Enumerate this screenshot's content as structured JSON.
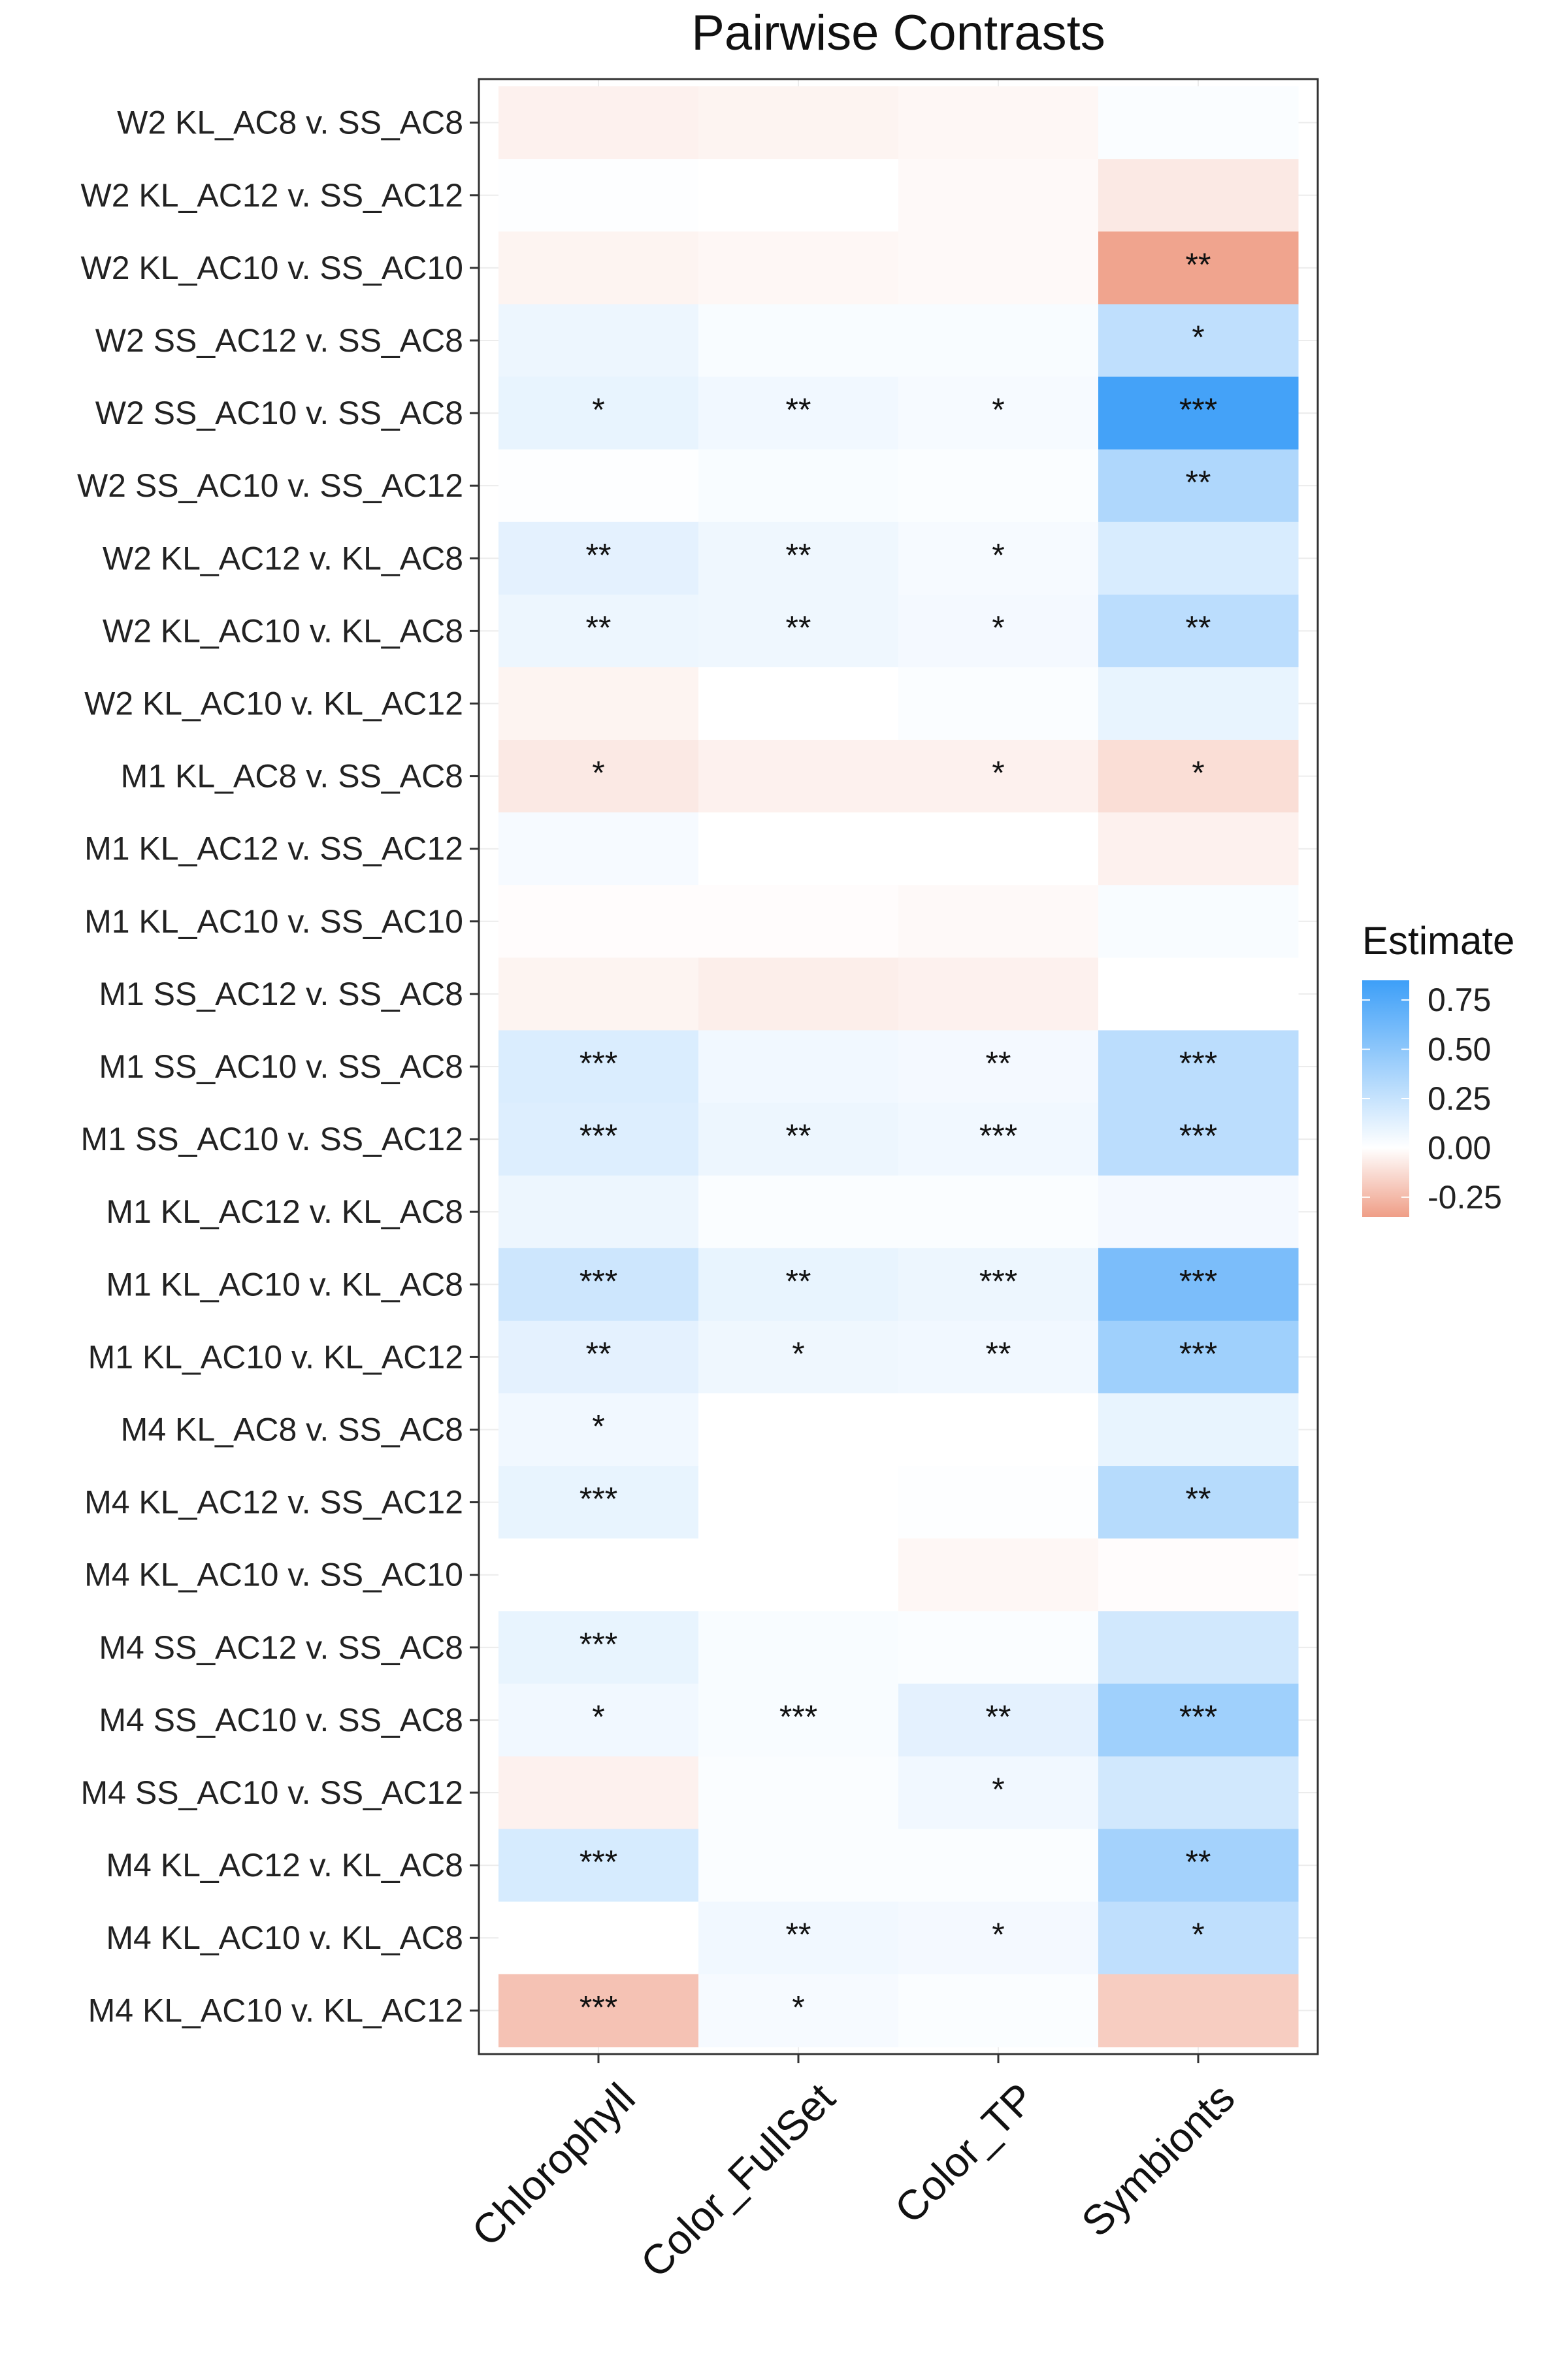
{
  "chart_data": {
    "type": "heatmap",
    "title": "Pairwise Contrasts",
    "xlabel": "",
    "ylabel": "",
    "columns": [
      "Chlorophyll",
      "Color_FullSet",
      "Color_TP",
      "Symbionts"
    ],
    "rows": [
      "W2 KL_AC8 v. SS_AC8",
      "W2 KL_AC12 v. SS_AC12",
      "W2 KL_AC10 v. SS_AC10",
      "W2 SS_AC12 v. SS_AC8",
      "W2 SS_AC10 v. SS_AC8",
      "W2 SS_AC10 v. SS_AC12",
      "W2 KL_AC12 v. KL_AC8",
      "W2 KL_AC10 v. KL_AC8",
      "W2 KL_AC10 v. KL_AC12",
      "M1 KL_AC8 v. SS_AC8",
      "M1 KL_AC12 v. SS_AC12",
      "M1 KL_AC10 v. SS_AC10",
      "M1 SS_AC12 v. SS_AC8",
      "M1 SS_AC10 v. SS_AC8",
      "M1 SS_AC10 v. SS_AC12",
      "M1 KL_AC12 v. KL_AC8",
      "M1 KL_AC10 v. KL_AC8",
      "M1 KL_AC10 v. KL_AC12",
      "M4 KL_AC8 v. SS_AC8",
      "M4 KL_AC12 v. SS_AC12",
      "M4 KL_AC10 v. SS_AC10",
      "M4 SS_AC12 v. SS_AC8",
      "M4 SS_AC10 v. SS_AC8",
      "M4 SS_AC10 v. SS_AC12",
      "M4 KL_AC12 v. KL_AC8",
      "M4 KL_AC10 v. KL_AC8",
      "M4 KL_AC10 v. KL_AC12"
    ],
    "values": [
      [
        -0.05,
        -0.04,
        -0.03,
        0.02
      ],
      [
        0.01,
        0.0,
        -0.02,
        -0.08
      ],
      [
        -0.04,
        -0.03,
        -0.02,
        -0.33
      ],
      [
        0.08,
        0.03,
        0.03,
        0.28
      ],
      [
        0.1,
        0.06,
        0.04,
        0.82
      ],
      [
        0.01,
        0.03,
        0.02,
        0.35
      ],
      [
        0.12,
        0.07,
        0.04,
        0.17
      ],
      [
        0.08,
        0.07,
        0.05,
        0.3
      ],
      [
        -0.04,
        0.0,
        0.02,
        0.1
      ],
      [
        -0.08,
        -0.05,
        -0.05,
        -0.12
      ],
      [
        0.04,
        0.0,
        0.0,
        -0.05
      ],
      [
        -0.01,
        -0.01,
        -0.02,
        0.03
      ],
      [
        -0.04,
        -0.06,
        -0.05,
        0.0
      ],
      [
        0.16,
        0.06,
        0.05,
        0.3
      ],
      [
        0.15,
        0.08,
        0.06,
        0.3
      ],
      [
        0.08,
        0.02,
        0.02,
        0.05
      ],
      [
        0.22,
        0.1,
        0.08,
        0.58
      ],
      [
        0.12,
        0.07,
        0.06,
        0.42
      ],
      [
        0.06,
        0.0,
        0.0,
        0.1
      ],
      [
        0.1,
        0.0,
        0.01,
        0.32
      ],
      [
        0.0,
        0.0,
        -0.03,
        -0.01
      ],
      [
        0.1,
        0.03,
        0.02,
        0.2
      ],
      [
        0.06,
        0.03,
        0.12,
        0.42
      ],
      [
        -0.05,
        0.02,
        0.06,
        0.2
      ],
      [
        0.18,
        0.02,
        0.02,
        0.4
      ],
      [
        0.0,
        0.06,
        0.05,
        0.28
      ],
      [
        -0.22,
        0.04,
        0.02,
        -0.18
      ]
    ],
    "significance": [
      [
        "",
        "",
        "",
        ""
      ],
      [
        "",
        "",
        "",
        ""
      ],
      [
        "",
        "",
        "",
        "**"
      ],
      [
        "",
        "",
        "",
        "*"
      ],
      [
        "*",
        "**",
        "*",
        "***"
      ],
      [
        "",
        "",
        "",
        "**"
      ],
      [
        "**",
        "**",
        "*",
        ""
      ],
      [
        "**",
        "**",
        "*",
        "**"
      ],
      [
        "",
        "",
        "",
        ""
      ],
      [
        "*",
        "",
        "*",
        "*"
      ],
      [
        "",
        "",
        "",
        ""
      ],
      [
        "",
        "",
        "",
        ""
      ],
      [
        "",
        "",
        "",
        ""
      ],
      [
        "***",
        "",
        "**",
        "***"
      ],
      [
        "***",
        "**",
        "***",
        "***"
      ],
      [
        "",
        "",
        "",
        ""
      ],
      [
        "***",
        "**",
        "***",
        "***"
      ],
      [
        "**",
        "*",
        "**",
        "***"
      ],
      [
        "*",
        "",
        "",
        ""
      ],
      [
        "***",
        "",
        "",
        "**"
      ],
      [
        "",
        "",
        "",
        ""
      ],
      [
        "***",
        "",
        "",
        ""
      ],
      [
        "*",
        "***",
        "**",
        "***"
      ],
      [
        "",
        "",
        "*",
        ""
      ],
      [
        "***",
        "",
        "",
        "**"
      ],
      [
        "",
        "**",
        "*",
        "*"
      ],
      [
        "***",
        "*",
        "",
        ""
      ]
    ],
    "legend": {
      "title": "Estimate",
      "placement": "right",
      "ticks": [
        "0.75",
        "0.50",
        "0.25",
        "0.00",
        "-0.25"
      ],
      "tick_values": [
        0.75,
        0.5,
        0.25,
        0.0,
        -0.25
      ],
      "range": [
        -0.35,
        0.85
      ],
      "low_color": "#ef9e87",
      "mid_color": "#ffffff",
      "high_color": "#3d9ff8"
    },
    "grid": true
  }
}
